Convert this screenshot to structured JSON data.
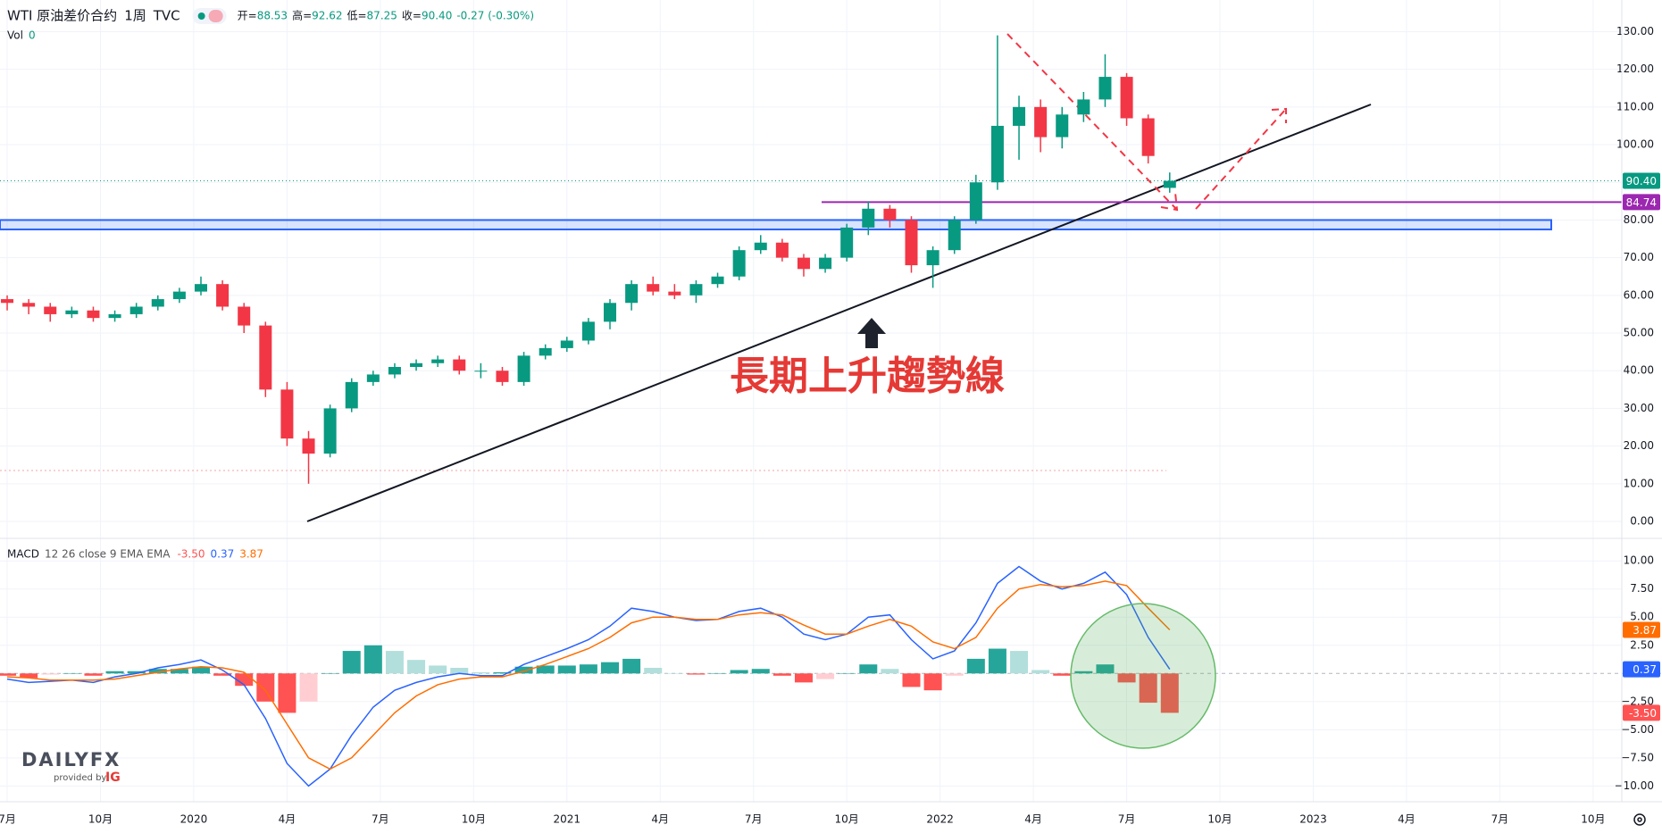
{
  "header": {
    "symbol": "WTI 原油差价合约",
    "interval": "1周",
    "source": "TVC",
    "ohlc": [
      {
        "label": "开=",
        "text": "88.53"
      },
      {
        "label": "高=",
        "text": "92.62"
      },
      {
        "label": "低=",
        "text": "87.25"
      },
      {
        "label": "收=",
        "text": "90.40"
      }
    ],
    "change": "-0.27 (-0.30%)",
    "vol": {
      "label": "Vol",
      "value": 0
    }
  },
  "annotation": "長期上升趨勢線",
  "logo": {
    "brand": "DAILYFX",
    "tagline": "provided by",
    "partner": "IG"
  },
  "chart_data": [
    {
      "type": "candlestick",
      "x": [
        0,
        3,
        6,
        9,
        12,
        15,
        18,
        21,
        24,
        27,
        30,
        33,
        36,
        39,
        42,
        45,
        48,
        51,
        54,
        57,
        60,
        63,
        66,
        69,
        72,
        75,
        78,
        81,
        84,
        87,
        90,
        93,
        96,
        99,
        102,
        105,
        108,
        111,
        114,
        117,
        120,
        123,
        126,
        129,
        132,
        135,
        138,
        141,
        144,
        147,
        150,
        153,
        156,
        159,
        162
      ],
      "open": [
        59,
        58,
        57,
        55,
        56,
        54,
        55,
        57,
        59,
        61,
        63,
        57,
        52,
        35,
        22,
        18,
        30,
        37,
        39,
        41,
        42,
        43,
        40,
        40,
        37,
        44,
        46,
        48,
        53,
        58,
        63,
        61,
        60,
        63,
        65,
        72,
        74,
        70,
        67,
        70,
        78,
        83,
        80,
        68,
        72,
        80,
        90,
        105,
        110,
        102,
        108,
        112,
        118,
        107,
        88.53
      ],
      "high": [
        60,
        59,
        58,
        57,
        57,
        56,
        58,
        60,
        62,
        65,
        64,
        58,
        53,
        37,
        24,
        31,
        38,
        40,
        42,
        43,
        44,
        44,
        42,
        41,
        45,
        47,
        49,
        54,
        59,
        64,
        65,
        63,
        64,
        66,
        73,
        76,
        75,
        71,
        71,
        79,
        85,
        84,
        81,
        73,
        81,
        92,
        129,
        113,
        112,
        110,
        114,
        124,
        119,
        108,
        92.62
      ],
      "low": [
        56,
        55,
        53,
        54,
        53,
        53,
        54,
        56,
        58,
        60,
        56,
        50,
        33,
        20,
        10,
        17,
        29,
        36,
        38,
        40,
        41,
        39,
        38,
        36,
        36,
        43,
        45,
        47,
        51,
        56,
        60,
        59,
        58,
        62,
        64,
        71,
        69,
        65,
        66,
        69,
        76,
        78,
        66,
        62,
        71,
        79,
        88,
        96,
        98,
        99,
        106,
        110,
        105,
        95,
        87.25
      ],
      "close": [
        58,
        57,
        55,
        56,
        54,
        55,
        57,
        59,
        61,
        63,
        57,
        52,
        35,
        22,
        18,
        30,
        37,
        39,
        41,
        42,
        43,
        40,
        40,
        37,
        44,
        46,
        48,
        53,
        58,
        63,
        61,
        60,
        63,
        65,
        72,
        74,
        70,
        67,
        70,
        78,
        83,
        80,
        68,
        72,
        80,
        90,
        105,
        110,
        102,
        108,
        112,
        118,
        107,
        97,
        90.4
      ],
      "up_color": "#089981",
      "down_color": "#f23645",
      "xlim": [
        -1,
        225
      ],
      "ylim": [
        -4.5,
        138.4
      ],
      "yticks": [
        {
          "value": 0,
          "label": "0.00"
        },
        {
          "value": 10,
          "label": "10.00"
        },
        {
          "value": 20,
          "label": "20.00"
        },
        {
          "value": 30,
          "label": "30.00"
        },
        {
          "value": 40,
          "label": "40.00"
        },
        {
          "value": 50,
          "label": "50.00"
        },
        {
          "value": 60,
          "label": "60.00"
        },
        {
          "value": 70,
          "label": "70.00"
        },
        {
          "value": 80,
          "label": "80.00"
        },
        {
          "value": 90,
          "label": "90.00"
        },
        {
          "value": 100,
          "label": "100.00"
        },
        {
          "value": 110,
          "label": "110.00"
        },
        {
          "value": 120,
          "label": "120.00"
        },
        {
          "value": 130,
          "label": "130.00"
        }
      ],
      "grid": true,
      "last_price": {
        "value": 90.4,
        "label": "90.40",
        "color": "#089981"
      },
      "level": {
        "value": 84.74,
        "label": "84.74",
        "color": "#9c27b0"
      }
    },
    {
      "type": "macd",
      "title": "MACD",
      "params": "12 26 close 9 EMA EMA",
      "x": [
        0,
        3,
        6,
        9,
        12,
        15,
        18,
        21,
        24,
        27,
        30,
        33,
        36,
        39,
        42,
        45,
        48,
        51,
        54,
        57,
        60,
        63,
        66,
        69,
        72,
        75,
        78,
        81,
        84,
        87,
        90,
        93,
        96,
        99,
        102,
        105,
        108,
        111,
        114,
        117,
        120,
        123,
        126,
        129,
        132,
        135,
        138,
        141,
        144,
        147,
        150,
        153,
        156,
        159,
        162
      ],
      "series": [
        {
          "kind": "histogram",
          "value_label": "-3.50",
          "color": "#ff5252",
          "colors": {
            "grow_above": "#26a69a",
            "fall_above": "#b2dfdb",
            "grow_below": "#ffcdd2",
            "fall_below": "#ff5252"
          },
          "values": [
            -0.2,
            -0.4,
            -0.1,
            0,
            -0.2,
            0.2,
            0.2,
            0.4,
            0.4,
            0.6,
            -0.2,
            -1.1,
            -2.5,
            -3.5,
            -2.5,
            0,
            2,
            2.5,
            2,
            1.2,
            0.7,
            0.5,
            0.1,
            0.1,
            0.6,
            0.7,
            0.7,
            0.8,
            1,
            1.3,
            0.5,
            0,
            -0.1,
            0,
            0.3,
            0.4,
            -0.2,
            -0.8,
            -0.5,
            0,
            0.8,
            0.4,
            -1.2,
            -1.5,
            -0.2,
            1.3,
            2.2,
            2,
            0.3,
            -0.2,
            0.2,
            0.8,
            -0.8,
            -2.6,
            -3.5
          ]
        },
        {
          "kind": "line",
          "value_label": "0.37",
          "color": "#2962ff",
          "values": [
            -0.5,
            -0.8,
            -0.7,
            -0.6,
            -0.8,
            -0.3,
            0,
            0.5,
            0.8,
            1.2,
            0.3,
            -1,
            -4,
            -8,
            -10,
            -8.5,
            -5.5,
            -3,
            -1.5,
            -0.8,
            -0.3,
            0,
            -0.2,
            -0.2,
            0.8,
            1.5,
            2.2,
            3,
            4.2,
            5.8,
            5.5,
            5,
            4.7,
            4.8,
            5.5,
            5.8,
            5,
            3.5,
            3,
            3.5,
            5,
            5.2,
            3,
            1.3,
            2,
            4.5,
            8,
            9.5,
            8.2,
            7.5,
            8,
            9,
            7,
            3.2,
            0.37
          ]
        },
        {
          "kind": "line",
          "value_label": "3.87",
          "color": "#ff6d00",
          "values": [
            -0.3,
            -0.4,
            -0.6,
            -0.6,
            -0.6,
            -0.5,
            -0.2,
            0.1,
            0.4,
            0.6,
            0.5,
            0.1,
            -1.5,
            -4.5,
            -7.5,
            -8.5,
            -7.5,
            -5.5,
            -3.5,
            -2,
            -1,
            -0.5,
            -0.3,
            -0.3,
            0.2,
            0.8,
            1.5,
            2.2,
            3.2,
            4.5,
            5,
            5,
            4.8,
            4.8,
            5.2,
            5.4,
            5.2,
            4.3,
            3.5,
            3.5,
            4.2,
            4.8,
            4.2,
            2.8,
            2.2,
            3.2,
            5.8,
            7.5,
            7.9,
            7.7,
            7.8,
            8.2,
            7.8,
            5.8,
            3.87
          ]
        }
      ],
      "xlim": [
        -1,
        225
      ],
      "ylim": [
        -11.4,
        12
      ],
      "yticks": [
        {
          "value": 10,
          "label": "10.00"
        },
        {
          "value": 7.5,
          "label": "7.50"
        },
        {
          "value": 5,
          "label": "5.00"
        },
        {
          "value": 2.5,
          "label": "2.50"
        },
        {
          "value": -2.5,
          "label": "−2.50"
        },
        {
          "value": -5,
          "label": "−5.00"
        },
        {
          "value": -7.5,
          "label": "−7.50"
        },
        {
          "value": -10,
          "label": "−10.00"
        }
      ],
      "xticks": [
        {
          "value": 0,
          "label": "7月"
        },
        {
          "value": 13,
          "label": "10月"
        },
        {
          "value": 26,
          "label": "2020"
        },
        {
          "value": 39,
          "label": "4月"
        },
        {
          "value": 52,
          "label": "7月"
        },
        {
          "value": 65,
          "label": "10月"
        },
        {
          "value": 78,
          "label": "2021"
        },
        {
          "value": 91,
          "label": "4月"
        },
        {
          "value": 104,
          "label": "7月"
        },
        {
          "value": 117,
          "label": "10月"
        },
        {
          "value": 130,
          "label": "2022"
        },
        {
          "value": 143,
          "label": "4月"
        },
        {
          "value": 156,
          "label": "7月"
        },
        {
          "value": 169,
          "label": "10月"
        },
        {
          "value": 182,
          "label": "2023"
        },
        {
          "value": 195,
          "label": "4月"
        },
        {
          "value": 208,
          "label": "7月"
        },
        {
          "value": 221,
          "label": "10月"
        }
      ],
      "grid": true
    }
  ]
}
